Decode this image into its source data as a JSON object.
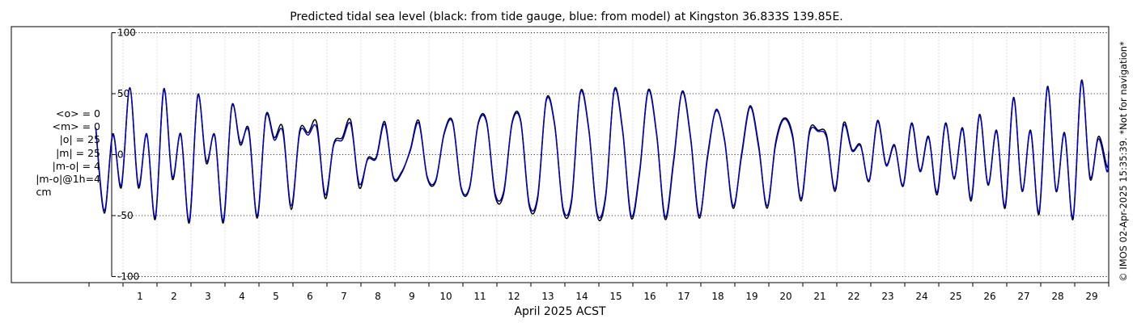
{
  "chart_data": {
    "type": "line",
    "title": "Predicted tidal sea level (black: from tide gauge, blue: from model) at Kingston 36.833S 139.85E.",
    "xlabel": "April 2025 ACST",
    "ylabel": "",
    "xlim": [
      0,
      30
    ],
    "ylim": [
      -105,
      105
    ],
    "y_ticks": [
      100,
      50,
      0,
      -50,
      -100
    ],
    "x_ticks": [
      1,
      2,
      3,
      4,
      5,
      6,
      7,
      8,
      9,
      10,
      11,
      12,
      13,
      14,
      15,
      16,
      17,
      18,
      19,
      20,
      21,
      22,
      23,
      24,
      25,
      26,
      27,
      28,
      29
    ],
    "grid": true,
    "series": [
      {
        "name": "from tide gauge",
        "color": "#000000",
        "points": [
          [
            0.2,
            21
          ],
          [
            0.45,
            -48
          ],
          [
            0.7,
            17
          ],
          [
            0.95,
            -27
          ],
          [
            1.2,
            55
          ],
          [
            1.45,
            -27
          ],
          [
            1.7,
            17
          ],
          [
            1.95,
            -53
          ],
          [
            2.2,
            54
          ],
          [
            2.45,
            -20
          ],
          [
            2.7,
            17
          ],
          [
            2.95,
            -56
          ],
          [
            3.2,
            49
          ],
          [
            3.45,
            -7
          ],
          [
            3.7,
            16
          ],
          [
            3.95,
            -56
          ],
          [
            4.2,
            40
          ],
          [
            4.45,
            8
          ],
          [
            4.7,
            21
          ],
          [
            4.95,
            -52
          ],
          [
            5.2,
            32
          ],
          [
            5.45,
            14
          ],
          [
            5.7,
            22
          ],
          [
            5.95,
            -45
          ],
          [
            6.2,
            20
          ],
          [
            6.45,
            18
          ],
          [
            6.7,
            26
          ],
          [
            6.95,
            -36
          ],
          [
            7.2,
            9
          ],
          [
            7.45,
            14
          ],
          [
            7.7,
            28
          ],
          [
            7.95,
            -27
          ],
          [
            8.2,
            -3
          ],
          [
            8.45,
            -2
          ],
          [
            8.7,
            27
          ],
          [
            8.95,
            -19
          ],
          [
            9.2,
            -15
          ],
          [
            9.45,
            4
          ],
          [
            9.7,
            28
          ],
          [
            9.95,
            -19
          ],
          [
            10.2,
            -22
          ],
          [
            10.45,
            18
          ],
          [
            10.7,
            27
          ],
          [
            10.95,
            -28
          ],
          [
            11.2,
            -27
          ],
          [
            11.45,
            26
          ],
          [
            11.7,
            27
          ],
          [
            11.95,
            -34
          ],
          [
            12.2,
            -32
          ],
          [
            12.45,
            27
          ],
          [
            12.7,
            28
          ],
          [
            12.95,
            -42
          ],
          [
            13.2,
            -36
          ],
          [
            13.45,
            45
          ],
          [
            13.7,
            25
          ],
          [
            13.95,
            -46
          ],
          [
            14.2,
            -38
          ],
          [
            14.45,
            51
          ],
          [
            14.7,
            22
          ],
          [
            14.95,
            -50
          ],
          [
            15.2,
            -35
          ],
          [
            15.45,
            53
          ],
          [
            15.7,
            20
          ],
          [
            15.95,
            -52
          ],
          [
            16.2,
            -15
          ],
          [
            16.45,
            53
          ],
          [
            16.7,
            17
          ],
          [
            16.95,
            -53
          ],
          [
            17.2,
            -6
          ],
          [
            17.45,
            52
          ],
          [
            17.7,
            14
          ],
          [
            17.95,
            -52
          ],
          [
            18.2,
            0
          ],
          [
            18.45,
            36
          ],
          [
            18.7,
            12
          ],
          [
            18.95,
            -44
          ],
          [
            19.2,
            1
          ],
          [
            19.45,
            40
          ],
          [
            19.7,
            8
          ],
          [
            19.95,
            -44
          ],
          [
            20.2,
            10
          ],
          [
            20.45,
            30
          ],
          [
            20.7,
            16
          ],
          [
            20.95,
            -38
          ],
          [
            21.2,
            20
          ],
          [
            21.45,
            20
          ],
          [
            21.7,
            16
          ],
          [
            21.95,
            -30
          ],
          [
            22.2,
            26
          ],
          [
            22.45,
            4
          ],
          [
            22.7,
            8
          ],
          [
            22.95,
            -22
          ],
          [
            23.2,
            28
          ],
          [
            23.45,
            -8
          ],
          [
            23.7,
            8
          ],
          [
            23.95,
            -26
          ],
          [
            24.2,
            26
          ],
          [
            24.45,
            -13
          ],
          [
            24.7,
            15
          ],
          [
            24.95,
            -33
          ],
          [
            25.2,
            26
          ],
          [
            25.45,
            -20
          ],
          [
            25.7,
            22
          ],
          [
            25.95,
            -38
          ],
          [
            26.2,
            33
          ],
          [
            26.45,
            -25
          ],
          [
            26.7,
            20
          ],
          [
            26.95,
            -44
          ],
          [
            27.2,
            47
          ],
          [
            27.45,
            -30
          ],
          [
            27.7,
            20
          ],
          [
            27.95,
            -49
          ],
          [
            28.2,
            56
          ],
          [
            28.45,
            -30
          ],
          [
            28.7,
            18
          ],
          [
            28.95,
            -53
          ],
          [
            29.2,
            61
          ],
          [
            29.45,
            -20
          ],
          [
            29.7,
            15
          ],
          [
            29.95,
            -10
          ],
          [
            30.0,
            1
          ]
        ]
      },
      {
        "name": "from model",
        "color": "#0000cc",
        "points": [
          [
            0.2,
            22
          ],
          [
            0.45,
            -46
          ],
          [
            0.7,
            16
          ],
          [
            0.95,
            -25
          ],
          [
            1.2,
            54
          ],
          [
            1.45,
            -25
          ],
          [
            1.7,
            16
          ],
          [
            1.95,
            -51
          ],
          [
            2.2,
            53
          ],
          [
            2.45,
            -18
          ],
          [
            2.7,
            16
          ],
          [
            2.95,
            -54
          ],
          [
            3.2,
            48
          ],
          [
            3.45,
            -5
          ],
          [
            3.7,
            15
          ],
          [
            3.95,
            -54
          ],
          [
            4.2,
            39
          ],
          [
            4.45,
            10
          ],
          [
            4.7,
            19
          ],
          [
            4.95,
            -50
          ],
          [
            5.2,
            31
          ],
          [
            5.45,
            12
          ],
          [
            5.7,
            19
          ],
          [
            5.95,
            -42
          ],
          [
            6.2,
            18
          ],
          [
            6.45,
            16
          ],
          [
            6.7,
            22
          ],
          [
            6.95,
            -33
          ],
          [
            7.2,
            8
          ],
          [
            7.45,
            12
          ],
          [
            7.7,
            25
          ],
          [
            7.95,
            -24
          ],
          [
            8.2,
            -4
          ],
          [
            8.45,
            -3
          ],
          [
            8.7,
            25
          ],
          [
            8.95,
            -18
          ],
          [
            9.2,
            -14
          ],
          [
            9.45,
            3
          ],
          [
            9.7,
            26
          ],
          [
            9.95,
            -18
          ],
          [
            10.2,
            -21
          ],
          [
            10.45,
            17
          ],
          [
            10.7,
            26
          ],
          [
            10.95,
            -27
          ],
          [
            11.2,
            -26
          ],
          [
            11.45,
            25
          ],
          [
            11.7,
            26
          ],
          [
            11.95,
            -32
          ],
          [
            12.2,
            -30
          ],
          [
            12.45,
            26
          ],
          [
            12.7,
            27
          ],
          [
            12.95,
            -40
          ],
          [
            13.2,
            -34
          ],
          [
            13.45,
            44
          ],
          [
            13.7,
            24
          ],
          [
            13.95,
            -44
          ],
          [
            14.2,
            -36
          ],
          [
            14.45,
            50
          ],
          [
            14.7,
            21
          ],
          [
            14.95,
            -48
          ],
          [
            15.2,
            -33
          ],
          [
            15.45,
            52
          ],
          [
            15.7,
            19
          ],
          [
            15.95,
            -50
          ],
          [
            16.2,
            -13
          ],
          [
            16.45,
            52
          ],
          [
            16.7,
            16
          ],
          [
            16.95,
            -51
          ],
          [
            17.2,
            -4
          ],
          [
            17.45,
            51
          ],
          [
            17.7,
            13
          ],
          [
            17.95,
            -50
          ],
          [
            18.2,
            -2
          ],
          [
            18.45,
            37
          ],
          [
            18.7,
            11
          ],
          [
            18.95,
            -42
          ],
          [
            19.2,
            -1
          ],
          [
            19.45,
            39
          ],
          [
            19.7,
            6
          ],
          [
            19.95,
            -42
          ],
          [
            20.2,
            8
          ],
          [
            20.45,
            29
          ],
          [
            20.7,
            14
          ],
          [
            20.95,
            -36
          ],
          [
            21.2,
            18
          ],
          [
            21.45,
            19
          ],
          [
            21.7,
            14
          ],
          [
            21.95,
            -28
          ],
          [
            22.2,
            24
          ],
          [
            22.45,
            3
          ],
          [
            22.7,
            7
          ],
          [
            22.95,
            -21
          ],
          [
            23.2,
            27
          ],
          [
            23.45,
            -9
          ],
          [
            23.7,
            7
          ],
          [
            23.95,
            -25
          ],
          [
            24.2,
            25
          ],
          [
            24.45,
            -14
          ],
          [
            24.7,
            14
          ],
          [
            24.95,
            -31
          ],
          [
            25.2,
            25
          ],
          [
            25.45,
            -19
          ],
          [
            25.7,
            21
          ],
          [
            25.95,
            -36
          ],
          [
            26.2,
            32
          ],
          [
            26.45,
            -24
          ],
          [
            26.7,
            19
          ],
          [
            26.95,
            -42
          ],
          [
            27.2,
            46
          ],
          [
            27.45,
            -29
          ],
          [
            27.7,
            19
          ],
          [
            27.95,
            -47
          ],
          [
            28.2,
            55
          ],
          [
            28.45,
            -29
          ],
          [
            28.7,
            17
          ],
          [
            28.95,
            -51
          ],
          [
            29.2,
            60
          ],
          [
            29.45,
            -18
          ],
          [
            29.7,
            13
          ],
          [
            29.95,
            -14
          ],
          [
            30.0,
            3
          ]
        ]
      }
    ]
  },
  "stats": {
    "mean_obs": "<o> = 0",
    "mean_model": "<m> = 0",
    "abs_obs": "|o| = 25",
    "abs_model": "|m| = 25",
    "abs_diff": "|m-o| = 4",
    "abs_diff_1h": "|m-o|@1h=4",
    "unit": "cm"
  },
  "credit": "© IMOS 02-Apr-2025 15:35:39. *Not for navigation*"
}
